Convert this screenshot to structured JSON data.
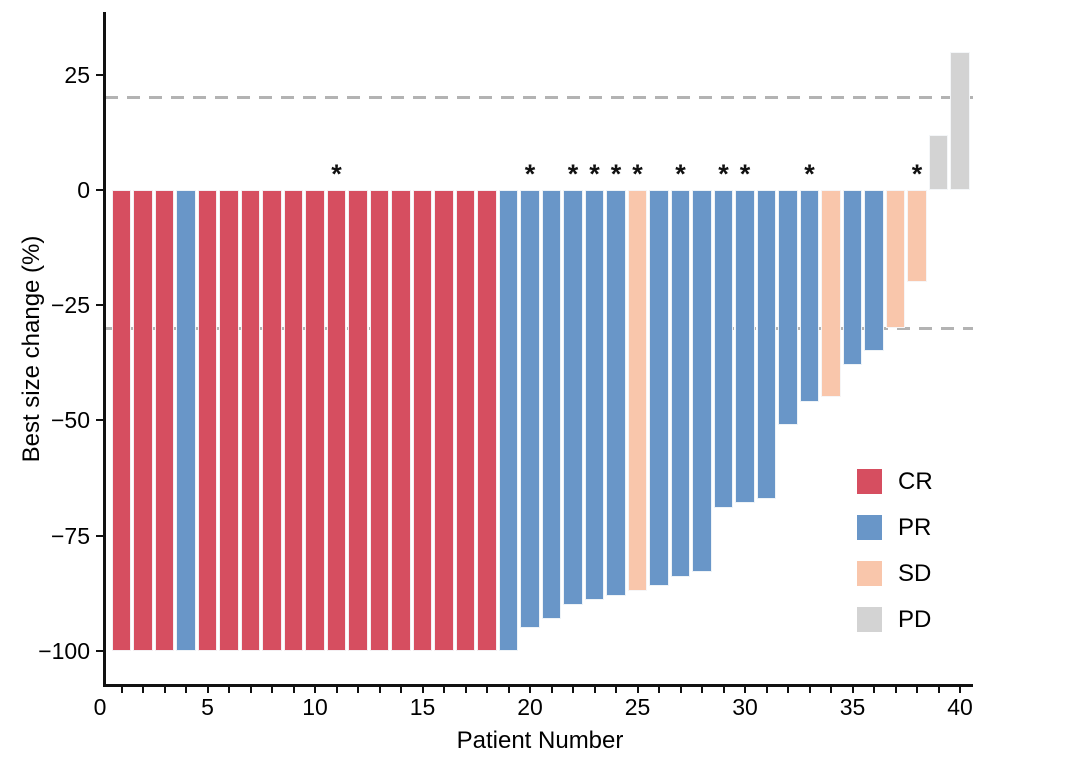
{
  "chart_data": {
    "type": "bar",
    "title": "",
    "xlabel": "Patient Number",
    "ylabel": "Best size change (%)",
    "xlim": [
      0.3,
      40.65
    ],
    "ylim": [
      -107,
      39
    ],
    "grid": "off",
    "legend_position": "inside-bottom-right",
    "reference_lines": [
      20,
      -30
    ],
    "reference_line_style": "dashed-gray",
    "yticks": [
      {
        "v": 25,
        "label": "25"
      },
      {
        "v": 0,
        "label": "0"
      },
      {
        "v": -25,
        "label": "−25"
      },
      {
        "v": -50,
        "label": "−50"
      },
      {
        "v": -75,
        "label": "−75"
      },
      {
        "v": -100,
        "label": "−100"
      }
    ],
    "xticks": [
      {
        "v": 0,
        "label": "0"
      },
      {
        "v": 5,
        "label": "5"
      },
      {
        "v": 10,
        "label": "10"
      },
      {
        "v": 15,
        "label": "15"
      },
      {
        "v": 20,
        "label": "20"
      },
      {
        "v": 25,
        "label": "25"
      },
      {
        "v": 30,
        "label": "30"
      },
      {
        "v": 35,
        "label": "35"
      },
      {
        "v": 40,
        "label": "40"
      }
    ],
    "minor_xticks_every": 1,
    "legend": [
      {
        "label": "CR",
        "color": "#d64e60"
      },
      {
        "label": "PR",
        "color": "#6996c8"
      },
      {
        "label": "SD",
        "color": "#f9c6ab"
      },
      {
        "label": "PD",
        "color": "#d3d3d3"
      }
    ],
    "bars": [
      {
        "patient": 1,
        "value": -100,
        "response": "CR",
        "star": false
      },
      {
        "patient": 2,
        "value": -100,
        "response": "CR",
        "star": false
      },
      {
        "patient": 3,
        "value": -100,
        "response": "CR",
        "star": false
      },
      {
        "patient": 4,
        "value": -100,
        "response": "PR",
        "star": false
      },
      {
        "patient": 5,
        "value": -100,
        "response": "CR",
        "star": false
      },
      {
        "patient": 6,
        "value": -100,
        "response": "CR",
        "star": false
      },
      {
        "patient": 7,
        "value": -100,
        "response": "CR",
        "star": false
      },
      {
        "patient": 8,
        "value": -100,
        "response": "CR",
        "star": false
      },
      {
        "patient": 9,
        "value": -100,
        "response": "CR",
        "star": false
      },
      {
        "patient": 10,
        "value": -100,
        "response": "CR",
        "star": false
      },
      {
        "patient": 11,
        "value": -100,
        "response": "CR",
        "star": true
      },
      {
        "patient": 12,
        "value": -100,
        "response": "CR",
        "star": false
      },
      {
        "patient": 13,
        "value": -100,
        "response": "CR",
        "star": false
      },
      {
        "patient": 14,
        "value": -100,
        "response": "CR",
        "star": false
      },
      {
        "patient": 15,
        "value": -100,
        "response": "CR",
        "star": false
      },
      {
        "patient": 16,
        "value": -100,
        "response": "CR",
        "star": false
      },
      {
        "patient": 17,
        "value": -100,
        "response": "CR",
        "star": false
      },
      {
        "patient": 18,
        "value": -100,
        "response": "CR",
        "star": false
      },
      {
        "patient": 19,
        "value": -100,
        "response": "PR",
        "star": false
      },
      {
        "patient": 20,
        "value": -95,
        "response": "PR",
        "star": true
      },
      {
        "patient": 21,
        "value": -93,
        "response": "PR",
        "star": false
      },
      {
        "patient": 22,
        "value": -90,
        "response": "PR",
        "star": true
      },
      {
        "patient": 23,
        "value": -89,
        "response": "PR",
        "star": true
      },
      {
        "patient": 24,
        "value": -88,
        "response": "PR",
        "star": true
      },
      {
        "patient": 25,
        "value": -87,
        "response": "SD",
        "star": true
      },
      {
        "patient": 26,
        "value": -86,
        "response": "PR",
        "star": false
      },
      {
        "patient": 27,
        "value": -84,
        "response": "PR",
        "star": true
      },
      {
        "patient": 28,
        "value": -83,
        "response": "PR",
        "star": false
      },
      {
        "patient": 29,
        "value": -69,
        "response": "PR",
        "star": true
      },
      {
        "patient": 30,
        "value": -68,
        "response": "PR",
        "star": true
      },
      {
        "patient": 31,
        "value": -67,
        "response": "PR",
        "star": false
      },
      {
        "patient": 32,
        "value": -51,
        "response": "PR",
        "star": false
      },
      {
        "patient": 33,
        "value": -46,
        "response": "PR",
        "star": true
      },
      {
        "patient": 34,
        "value": -45,
        "response": "SD",
        "star": false
      },
      {
        "patient": 35,
        "value": -38,
        "response": "PR",
        "star": false
      },
      {
        "patient": 36,
        "value": -35,
        "response": "PR",
        "star": false
      },
      {
        "patient": 37,
        "value": -30,
        "response": "SD",
        "star": false
      },
      {
        "patient": 38,
        "value": -20,
        "response": "SD",
        "star": true
      },
      {
        "patient": 39,
        "value": 12,
        "response": "PD",
        "star": false
      },
      {
        "patient": 40,
        "value": 30,
        "response": "PD",
        "star": false
      }
    ]
  },
  "colors": {
    "CR": "#d64e60",
    "PR": "#6996c8",
    "SD": "#f9c6ab",
    "PD": "#d3d3d3",
    "axis": "#111111",
    "dashed": "#b3b3b3"
  },
  "labels": {
    "x_title": "Patient Number",
    "y_title": "Best size change (%)"
  }
}
